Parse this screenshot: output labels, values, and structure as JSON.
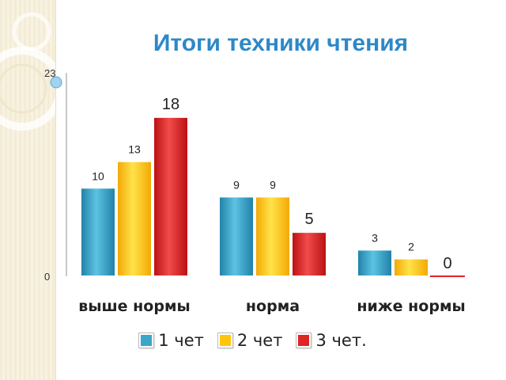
{
  "chart_data": {
    "type": "bar",
    "title": "Итоги техники чтения",
    "categories": [
      "выше нормы",
      "норма",
      "ниже нормы"
    ],
    "series": [
      {
        "name": "1 чет",
        "values": [
          10,
          9,
          3
        ],
        "color": "#3aa6c9"
      },
      {
        "name": "2 чет",
        "values": [
          13,
          9,
          2
        ],
        "color": "#ffc50c"
      },
      {
        "name": "3 чет.",
        "values": [
          18,
          5,
          0
        ],
        "color": "#e02323"
      }
    ],
    "ylim": [
      0,
      23
    ],
    "yticks": [
      "0",
      "23"
    ],
    "grid": false,
    "legend_position": "bottom"
  }
}
